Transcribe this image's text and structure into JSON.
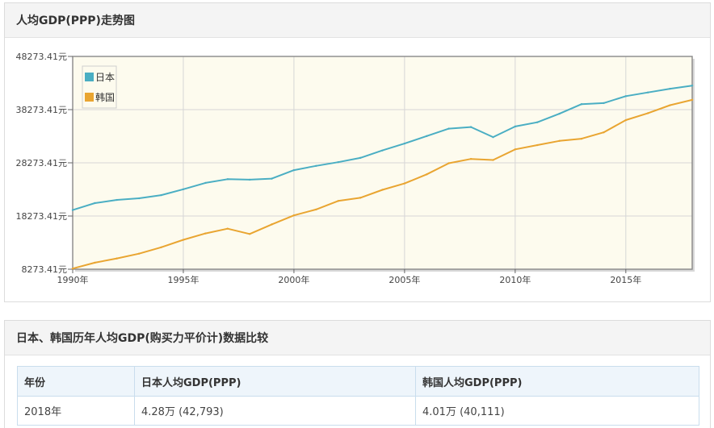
{
  "chart_panel": {
    "title": "人均GDP(PPP)走势图"
  },
  "chart_data": {
    "type": "line",
    "title": "",
    "xlabel": "",
    "ylabel": "",
    "x": [
      1990,
      1991,
      1992,
      1993,
      1994,
      1995,
      1996,
      1997,
      1998,
      1999,
      2000,
      2001,
      2002,
      2003,
      2004,
      2005,
      2006,
      2007,
      2008,
      2009,
      2010,
      2011,
      2012,
      2013,
      2014,
      2015,
      2016,
      2017,
      2018
    ],
    "x_tick_labels": [
      "1990年",
      "1995年",
      "2000年",
      "2005年",
      "2010年",
      "2015年"
    ],
    "x_tick_values": [
      1990,
      1995,
      2000,
      2005,
      2010,
      2015
    ],
    "y_tick_labels": [
      "8273.41元",
      "18273.41元",
      "28273.41元",
      "38273.41元",
      "48273.41元"
    ],
    "y_tick_values": [
      8273.41,
      18273.41,
      28273.41,
      38273.41,
      48273.41
    ],
    "ylim": [
      8273.41,
      48273.41
    ],
    "xlim": [
      1990,
      2018
    ],
    "grid": true,
    "legend_position": "top-left",
    "series": [
      {
        "name": "日本",
        "color": "#4aaec3",
        "values": [
          19400,
          20700,
          21300,
          21600,
          22200,
          23300,
          24500,
          25200,
          25100,
          25300,
          26900,
          27700,
          28400,
          29200,
          30600,
          31900,
          33300,
          34700,
          35000,
          33100,
          35100,
          35900,
          37500,
          39300,
          39500,
          40800,
          41500,
          42200,
          42793
        ]
      },
      {
        "name": "韩国",
        "color": "#e9a531",
        "values": [
          8400,
          9500,
          10300,
          11200,
          12400,
          13800,
          15000,
          15900,
          14900,
          16700,
          18400,
          19500,
          21100,
          21700,
          23200,
          24400,
          26100,
          28200,
          29000,
          28800,
          30800,
          31600,
          32400,
          32800,
          34000,
          36300,
          37600,
          39100,
          40111
        ]
      }
    ]
  },
  "table_panel": {
    "title": "日本、韩国历年人均GDP(购买力平价计)数据比较",
    "headers": [
      "年份",
      "日本人均GDP(PPP)",
      "韩国人均GDP(PPP)"
    ],
    "rows": [
      [
        "2018年",
        "4.28万 (42,793)",
        "4.01万 (40,111)"
      ]
    ]
  }
}
